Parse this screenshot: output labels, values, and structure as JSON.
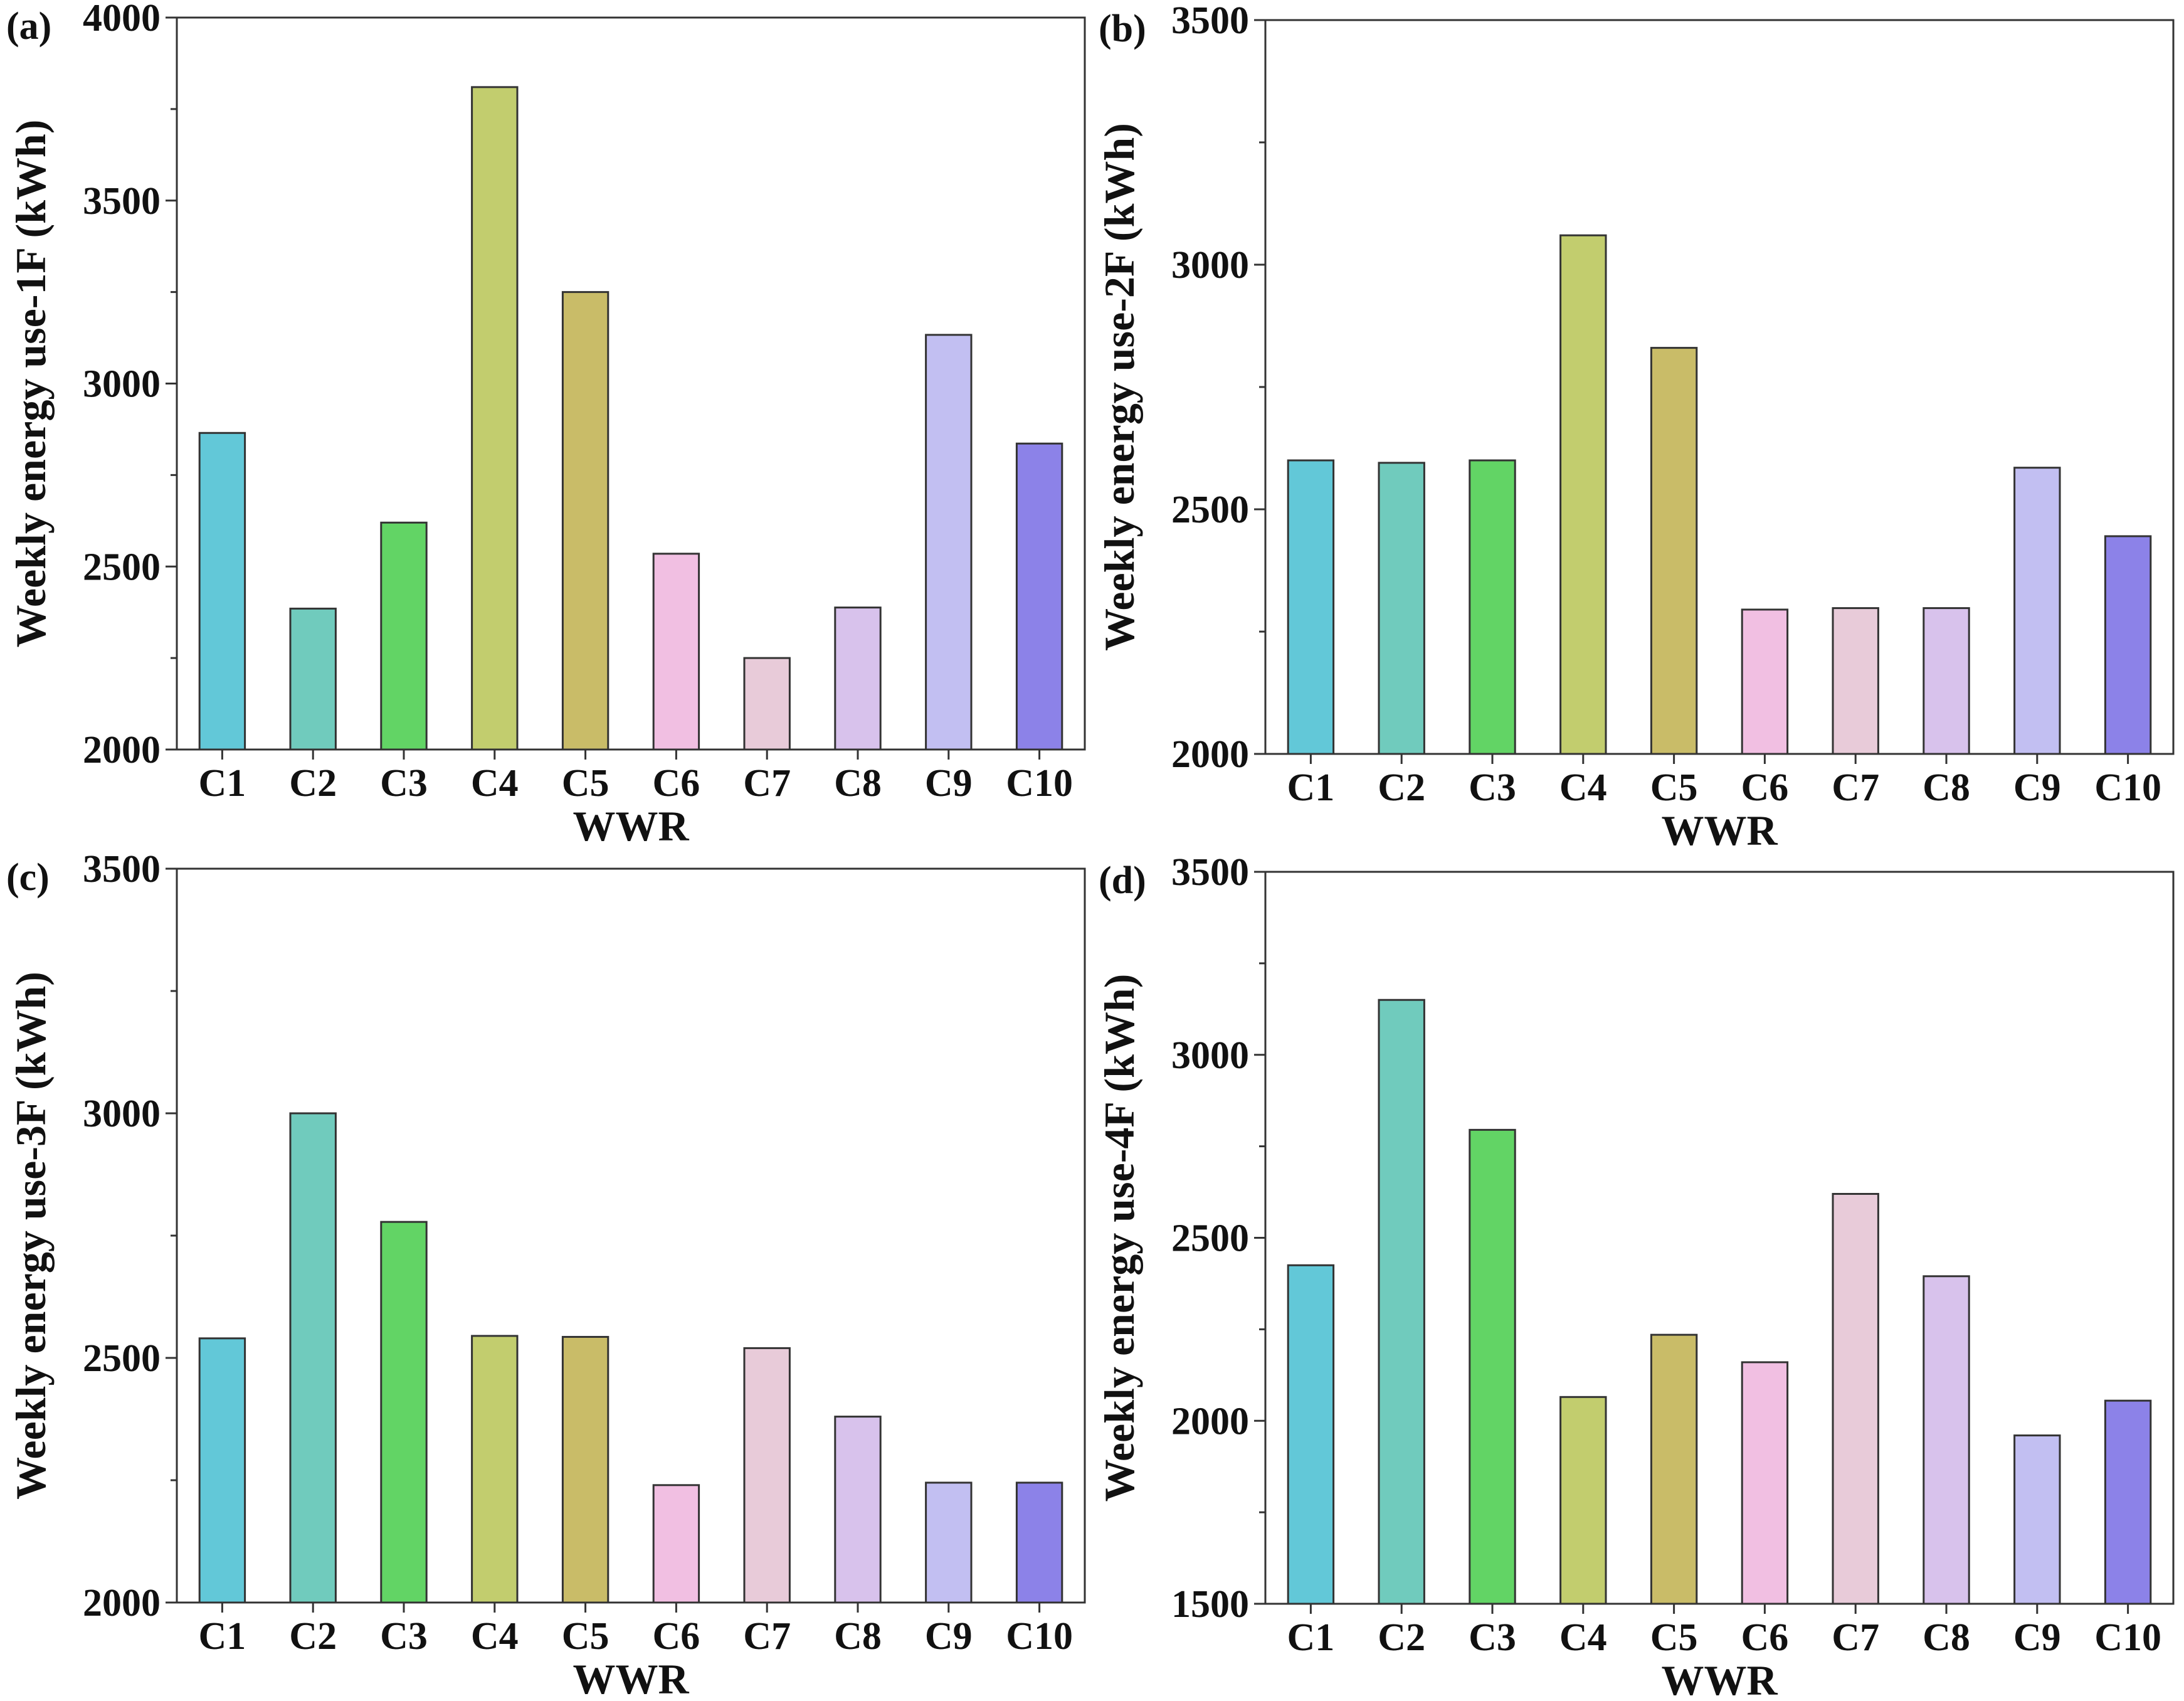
{
  "colors": [
    "#62c8d8",
    "#70cbbd",
    "#62d465",
    "#c2cd6e",
    "#c9bc68",
    "#f1bfe2",
    "#e8cbd9",
    "#d8c2ec",
    "#c2bff2",
    "#8c82e8"
  ],
  "chart_data": [
    {
      "type": "bar",
      "panel": "(a)",
      "xlabel": "WWR",
      "ylabel": "Weekly energy use-1F (kWh)",
      "categories": [
        "C1",
        "C2",
        "C3",
        "C4",
        "C5",
        "C6",
        "C7",
        "C8",
        "C9",
        "C10"
      ],
      "values": [
        2865,
        2385,
        2620,
        3810,
        3250,
        2535,
        2250,
        2388,
        3133,
        2836
      ],
      "ylim": [
        2000,
        4000
      ],
      "yticks": [
        "2000",
        "2500",
        "3000",
        "3500",
        "4000"
      ]
    },
    {
      "type": "bar",
      "panel": "(b)",
      "xlabel": "WWR",
      "ylabel": "Weekly energy use-2F (kWh)",
      "categories": [
        "C1",
        "C2",
        "C3",
        "C4",
        "C5",
        "C6",
        "C7",
        "C8",
        "C9",
        "C10"
      ],
      "values": [
        2600,
        2595,
        2600,
        3060,
        2830,
        2295,
        2298,
        2298,
        2585,
        2445
      ],
      "ylim": [
        2000,
        3500
      ],
      "yticks": [
        "2000",
        "2500",
        "3000",
        "3500"
      ]
    },
    {
      "type": "bar",
      "panel": "(c)",
      "xlabel": "WWR",
      "ylabel": "Weekly energy use-3F (kWh)",
      "categories": [
        "C1",
        "C2",
        "C3",
        "C4",
        "C5",
        "C6",
        "C7",
        "C8",
        "C9",
        "C10"
      ],
      "values": [
        2540,
        3000,
        2778,
        2545,
        2543,
        2240,
        2520,
        2380,
        2245,
        2245
      ],
      "ylim": [
        2000,
        3500
      ],
      "yticks": [
        "2000",
        "2500",
        "3000",
        "3500"
      ]
    },
    {
      "type": "bar",
      "panel": "(d)",
      "xlabel": "WWR",
      "ylabel": "Weekly energy use-4F (kWh)",
      "categories": [
        "C1",
        "C2",
        "C3",
        "C4",
        "C5",
        "C6",
        "C7",
        "C8",
        "C9",
        "C10"
      ],
      "values": [
        2425,
        3150,
        2795,
        2065,
        2235,
        2160,
        2620,
        2395,
        1960,
        2055
      ],
      "ylim": [
        1500,
        3500
      ],
      "yticks": [
        "1500",
        "2000",
        "2500",
        "3000",
        "3500"
      ]
    }
  ]
}
